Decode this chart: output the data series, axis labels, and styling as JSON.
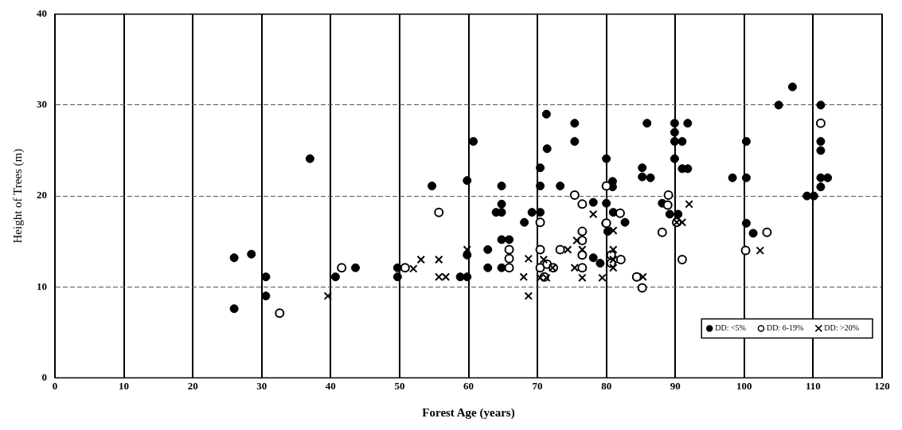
{
  "chart_data": {
    "type": "scatter",
    "xlabel": "Forest Age (years)",
    "ylabel": "Height of Trees (m)",
    "xlim": [
      0,
      120
    ],
    "xticks": [
      0,
      10,
      20,
      30,
      40,
      50,
      60,
      70,
      80,
      90,
      100,
      110,
      120
    ],
    "ylim": [
      0,
      40
    ],
    "yticks": [
      0,
      10,
      20,
      30,
      40
    ],
    "grid": true,
    "legend": "bottom right",
    "series": [
      {
        "name": "DD: <5%",
        "color": "#000000",
        "marker": "circle",
        "x": [
          26,
          26,
          28.5,
          30.6,
          30.6,
          37,
          40.7,
          43.6,
          49.7,
          49.7,
          54.7,
          58.8,
          59.8,
          59.8,
          59.8,
          60.7,
          62.8,
          62.8,
          64,
          64.8,
          64.8,
          64.8,
          64.8,
          65.9,
          64.8,
          68.1,
          69.2,
          70.4,
          70.4,
          70.4,
          71.4,
          71.3,
          73.3,
          75.4,
          75.4,
          78.1,
          78.1,
          79.1,
          80,
          80,
          79.9,
          80.2,
          80.9,
          80.9,
          81,
          82.7,
          85.2,
          85.2,
          86.4,
          85.9,
          88.1,
          89.2,
          90.4,
          89.9,
          89.9,
          91,
          89.9,
          89.9,
          91.8,
          91,
          91.8,
          98.3,
          100.3,
          100.3,
          100.3,
          101.3,
          105,
          107,
          109.1,
          110.1,
          111.1,
          111.1,
          112.1,
          111.1,
          111.1,
          111.1
        ],
        "values": [
          13.2,
          7.6,
          13.6,
          11.1,
          9,
          24.1,
          11.1,
          12.1,
          11.1,
          12.1,
          21.1,
          11.1,
          11.1,
          13.5,
          21.7,
          26,
          14.1,
          12.1,
          18.2,
          18.2,
          19.1,
          21.1,
          15.2,
          15.2,
          12.1,
          17.1,
          18.2,
          18.2,
          21.1,
          23.1,
          25.2,
          29,
          21.1,
          28,
          26,
          19.3,
          13.2,
          12.6,
          24.1,
          19.2,
          17,
          16.1,
          21.6,
          21,
          18.2,
          17.1,
          23.1,
          22.1,
          22,
          28,
          19.2,
          18,
          18,
          24.1,
          26,
          26,
          27,
          28,
          28,
          23,
          23,
          22,
          22,
          26,
          17,
          15.9,
          30,
          32,
          20,
          20,
          21,
          22,
          22,
          25,
          26,
          30
        ]
      },
      {
        "name": "DD: 6-19%",
        "color": "#000000",
        "marker": "circle",
        "x": [
          32.6,
          41.6,
          50.8,
          55.7,
          65.9,
          65.9,
          65.9,
          70.4,
          70.4,
          70.4,
          71.4,
          72.3,
          71,
          73.3,
          75.4,
          76.5,
          76.5,
          76.5,
          76.5,
          76.5,
          80,
          80,
          82,
          80.7,
          82.1,
          80.7,
          84.4,
          85.2,
          88.1,
          89,
          88.9,
          90.2,
          91,
          100.2,
          103.3,
          111.1
        ],
        "values": [
          7.1,
          12.1,
          12.1,
          18.2,
          14.1,
          13.1,
          12.1,
          17.1,
          14.1,
          12.1,
          12.5,
          12.1,
          11.1,
          14.1,
          20.1,
          19.1,
          16.1,
          15.1,
          13.5,
          12.1,
          21.1,
          17,
          18.1,
          13.5,
          13,
          12.6,
          11.1,
          9.9,
          16,
          20.1,
          19,
          17.1,
          13,
          14,
          16,
          28
        ]
      },
      {
        "name": "DD: >20%",
        "color": "#000000",
        "marker": "cross",
        "x": [
          39.6,
          52,
          53.1,
          55.7,
          55.7,
          56.7,
          59.8,
          68,
          68.7,
          68.7,
          70.4,
          71.3,
          70.9,
          72.2,
          74.4,
          75.7,
          76.5,
          75.4,
          76.5,
          78.1,
          79.4,
          81,
          81,
          81,
          81,
          85.3,
          90.2,
          91,
          92,
          102.3
        ],
        "values": [
          9,
          12,
          13,
          13,
          11.1,
          11.1,
          14.1,
          11.1,
          13.1,
          9,
          11,
          11,
          13,
          12.1,
          14.1,
          15.1,
          14.1,
          12.1,
          11,
          18,
          11,
          16.2,
          14.1,
          13,
          12.1,
          11.1,
          17.1,
          17.1,
          19.1,
          14
        ]
      }
    ]
  }
}
